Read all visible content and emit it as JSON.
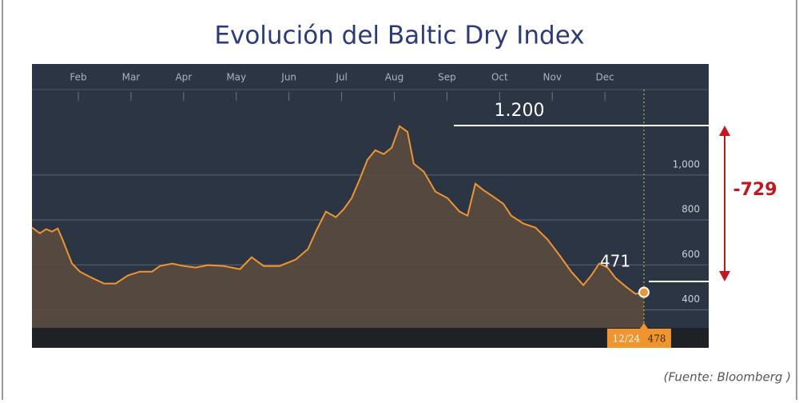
{
  "chart_data": {
    "type": "area",
    "title": "Evolución del Baltic Dry Index",
    "source": "(Fuente: Bloomberg )",
    "xlim": [
      1.12,
      13.97
    ],
    "xticks": [
      {
        "value": 2,
        "label": "Feb"
      },
      {
        "value": 3,
        "label": "Mar"
      },
      {
        "value": 4,
        "label": "Apr"
      },
      {
        "value": 5,
        "label": "May"
      },
      {
        "value": 6,
        "label": "Jun"
      },
      {
        "value": 7,
        "label": "Jul"
      },
      {
        "value": 8,
        "label": "Aug"
      },
      {
        "value": 9,
        "label": "Sep"
      },
      {
        "value": 10,
        "label": "Oct"
      },
      {
        "value": 11,
        "label": "Nov"
      },
      {
        "value": 12,
        "label": "Dec"
      }
    ],
    "ylim": [
      320,
      1380
    ],
    "yticks": [
      {
        "value": 400,
        "label": "400"
      },
      {
        "value": 600,
        "label": "600"
      },
      {
        "value": 800,
        "label": "800"
      },
      {
        "value": 1000,
        "label": "1,000"
      }
    ],
    "grid": true,
    "x": [
      1.12,
      1.27,
      1.39,
      1.5,
      1.61,
      1.7,
      1.88,
      2.03,
      2.26,
      2.49,
      2.71,
      2.94,
      3.17,
      3.4,
      3.55,
      3.78,
      4.0,
      4.23,
      4.46,
      4.76,
      5.07,
      5.29,
      5.52,
      5.82,
      6.13,
      6.36,
      6.51,
      6.7,
      6.89,
      7.04,
      7.19,
      7.34,
      7.49,
      7.64,
      7.8,
      7.95,
      8.1,
      8.25,
      8.37,
      8.56,
      8.78,
      9.01,
      9.24,
      9.39,
      9.54,
      9.69,
      9.85,
      10.07,
      10.22,
      10.45,
      10.68,
      10.91,
      11.14,
      11.36,
      11.59,
      11.74,
      11.89,
      12.05,
      12.2,
      12.42,
      12.58,
      12.74
    ],
    "series": [
      {
        "color": "#f0952e",
        "values": [
          766,
          741,
          759,
          748,
          762,
          713,
          606,
          570,
          542,
          517,
          517,
          553,
          570,
          570,
          595,
          606,
          595,
          588,
          599,
          595,
          581,
          634,
          595,
          595,
          624,
          670,
          748,
          837,
          812,
          848,
          897,
          979,
          1068,
          1110,
          1093,
          1121,
          1217,
          1192,
          1050,
          1015,
          926,
          897,
          837,
          819,
          961,
          933,
          908,
          872,
          819,
          784,
          766,
          713,
          642,
          570,
          510,
          553,
          606,
          588,
          542,
          499,
          471,
          478
        ]
      }
    ],
    "last_date": "12/24",
    "annotations": [
      "1.200",
      "471",
      "-729"
    ]
  }
}
